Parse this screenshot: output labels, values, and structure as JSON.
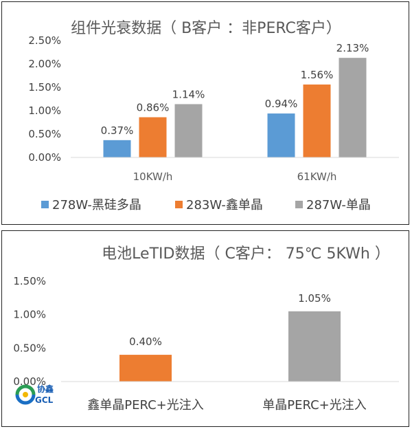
{
  "colors": {
    "blue": "#5b9bd5",
    "orange": "#ed7d31",
    "gray": "#a5a5a5"
  },
  "logo": {
    "text_cn": "协鑫",
    "text_en": "GCL"
  },
  "chart_data": [
    {
      "type": "bar",
      "title": "组件光衰数据（ B客户 ：非PERC客户）",
      "categories": [
        "10KW/h",
        "61KW/h"
      ],
      "ylim": [
        0,
        2.5
      ],
      "yticks": [
        "0.00%",
        "0.50%",
        "1.00%",
        "1.50%",
        "2.00%",
        "2.50%"
      ],
      "grid": false,
      "legend": "bottom",
      "series": [
        {
          "name": "278W-黑硅多晶",
          "color": "#5b9bd5",
          "values": [
            0.37,
            0.94
          ],
          "labels": [
            "0.37%",
            "0.94%"
          ]
        },
        {
          "name": "283W-鑫单晶",
          "color": "#ed7d31",
          "values": [
            0.86,
            1.56
          ],
          "labels": [
            "0.86%",
            "1.56%"
          ]
        },
        {
          "name": "287W-单晶",
          "color": "#a5a5a5",
          "values": [
            1.14,
            2.13
          ],
          "labels": [
            "1.14%",
            "2.13%"
          ]
        }
      ]
    },
    {
      "type": "bar",
      "title": "电池LeTID数据（ C客户： 75℃ 5KWh ）",
      "categories": [
        "鑫单晶PERC+光注入",
        "单晶PERC+光注入"
      ],
      "ylim": [
        0,
        1.5
      ],
      "yticks": [
        "0.00%",
        "0.50%",
        "1.00%",
        "1.50%"
      ],
      "grid": false,
      "legend": "none",
      "values": [
        0.4,
        1.05
      ],
      "labels": [
        "0.40%",
        "1.05%"
      ],
      "colors": [
        "#ed7d31",
        "#a5a5a5"
      ]
    }
  ]
}
